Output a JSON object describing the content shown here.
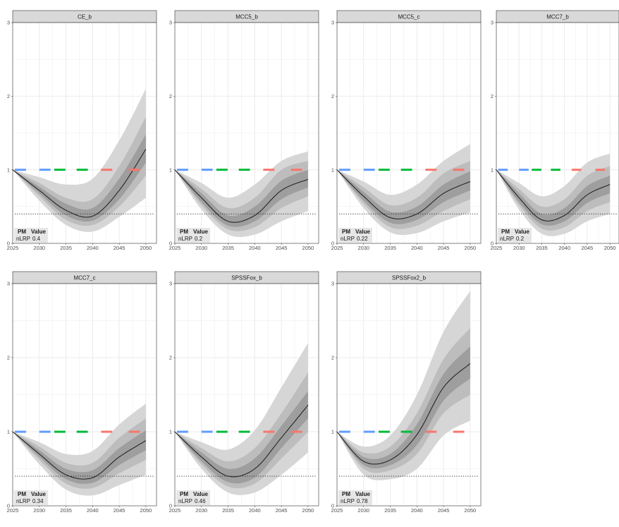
{
  "colors": {
    "panel_bg": "#ffffff",
    "strip_bg": "#d9d9d9",
    "grid": "#ebebeb",
    "band_outer": "#d6d6d6",
    "band_mid": "#bdbdbd",
    "band_inner": "#9e9e9e",
    "median": "#1a1a1a",
    "seg_blue": "#619cff",
    "seg_green": "#00ba38",
    "seg_red": "#f8766d",
    "lrp_line": "#333333",
    "table_bg": "#e6e6e6"
  },
  "table_header": {
    "pm": "PM",
    "value": "Value"
  },
  "chart_data": [
    {
      "type": "line",
      "title": "CE_b",
      "x": [
        2025,
        2030,
        2035,
        2040,
        2045,
        2050
      ],
      "series": [
        {
          "values": [
            1.0,
            0.72,
            0.45,
            0.37,
            0.72,
            1.28
          ]
        },
        {
          "values": [
            1.0,
            0.77,
            0.54,
            0.48,
            0.88,
            1.48
          ]
        },
        {
          "values": [
            1.0,
            0.68,
            0.38,
            0.31,
            0.6,
            1.1
          ]
        },
        {
          "values": [
            1.0,
            0.82,
            0.62,
            0.6,
            1.05,
            1.72
          ]
        },
        {
          "values": [
            1.0,
            0.64,
            0.32,
            0.25,
            0.5,
            0.92
          ]
        },
        {
          "values": [
            1.0,
            0.9,
            0.8,
            0.88,
            1.4,
            2.1
          ]
        },
        {
          "values": [
            1.0,
            0.58,
            0.25,
            0.16,
            0.36,
            0.62
          ]
        }
      ],
      "reference": {
        "target": 1.0,
        "lrp": 0.4
      },
      "xlim": [
        2025,
        2052
      ],
      "ylim": [
        0,
        3
      ],
      "yticks": [
        0,
        1,
        2,
        3
      ],
      "xticks": [
        2025,
        2030,
        2035,
        2040,
        2045,
        2050
      ],
      "pm": {
        "label": "nLRP",
        "value": "0.4"
      }
    },
    {
      "type": "line",
      "title": "MCC5_b",
      "x": [
        2025,
        2030,
        2035,
        2040,
        2045,
        2050
      ],
      "series": [
        {
          "values": [
            1.0,
            0.62,
            0.3,
            0.38,
            0.72,
            0.87
          ]
        },
        {
          "values": [
            1.0,
            0.68,
            0.38,
            0.5,
            0.85,
            1.0
          ]
        },
        {
          "values": [
            1.0,
            0.56,
            0.24,
            0.3,
            0.6,
            0.76
          ]
        },
        {
          "values": [
            1.0,
            0.74,
            0.48,
            0.62,
            1.0,
            1.12
          ]
        },
        {
          "values": [
            1.0,
            0.52,
            0.19,
            0.22,
            0.48,
            0.64
          ]
        },
        {
          "values": [
            1.0,
            0.82,
            0.62,
            0.8,
            1.12,
            1.25
          ]
        },
        {
          "values": [
            1.0,
            0.46,
            0.12,
            0.12,
            0.3,
            0.44
          ]
        }
      ],
      "reference": {
        "target": 1.0,
        "lrp": 0.4
      },
      "xlim": [
        2025,
        2052
      ],
      "ylim": [
        0,
        3
      ],
      "yticks": [
        0,
        1,
        2,
        3
      ],
      "xticks": [
        2025,
        2030,
        2035,
        2040,
        2045,
        2050
      ],
      "pm": {
        "label": "nLRP",
        "value": "0.2"
      }
    },
    {
      "type": "line",
      "title": "MCC5_c",
      "x": [
        2025,
        2030,
        2035,
        2040,
        2045,
        2050
      ],
      "series": [
        {
          "values": [
            1.0,
            0.64,
            0.35,
            0.4,
            0.68,
            0.84
          ]
        },
        {
          "values": [
            1.0,
            0.7,
            0.43,
            0.5,
            0.8,
            0.98
          ]
        },
        {
          "values": [
            1.0,
            0.58,
            0.28,
            0.32,
            0.56,
            0.72
          ]
        },
        {
          "values": [
            1.0,
            0.76,
            0.52,
            0.62,
            0.95,
            1.12
          ]
        },
        {
          "values": [
            1.0,
            0.54,
            0.22,
            0.24,
            0.44,
            0.6
          ]
        },
        {
          "values": [
            1.0,
            0.84,
            0.66,
            0.8,
            1.12,
            1.35
          ]
        },
        {
          "values": [
            1.0,
            0.48,
            0.15,
            0.14,
            0.3,
            0.42
          ]
        }
      ],
      "reference": {
        "target": 1.0,
        "lrp": 0.4
      },
      "xlim": [
        2025,
        2052
      ],
      "ylim": [
        0,
        3
      ],
      "yticks": [
        0,
        1,
        2,
        3
      ],
      "xticks": [
        2025,
        2030,
        2035,
        2040,
        2045,
        2050
      ],
      "pm": {
        "label": "nLRP",
        "value": "0.22"
      }
    },
    {
      "type": "line",
      "title": "MCC7_b",
      "x": [
        2025,
        2030,
        2035,
        2040,
        2045,
        2050
      ],
      "series": [
        {
          "values": [
            1.0,
            0.62,
            0.32,
            0.38,
            0.66,
            0.8
          ]
        },
        {
          "values": [
            1.0,
            0.68,
            0.4,
            0.48,
            0.78,
            0.92
          ]
        },
        {
          "values": [
            1.0,
            0.56,
            0.26,
            0.3,
            0.55,
            0.68
          ]
        },
        {
          "values": [
            1.0,
            0.74,
            0.5,
            0.6,
            0.92,
            1.05
          ]
        },
        {
          "values": [
            1.0,
            0.52,
            0.2,
            0.22,
            0.44,
            0.56
          ]
        },
        {
          "values": [
            1.0,
            0.82,
            0.64,
            0.78,
            1.1,
            1.22
          ]
        },
        {
          "values": [
            1.0,
            0.46,
            0.13,
            0.13,
            0.3,
            0.4
          ]
        }
      ],
      "reference": {
        "target": 1.0,
        "lrp": 0.4
      },
      "xlim": [
        2025,
        2052
      ],
      "ylim": [
        0,
        3
      ],
      "yticks": [
        0,
        1,
        2,
        3
      ],
      "xticks": [
        2025,
        2030,
        2035,
        2040,
        2045,
        2050
      ],
      "pm": {
        "label": "nLRP",
        "value": "0.2"
      }
    },
    {
      "type": "line",
      "title": "MCC7_c",
      "x": [
        2025,
        2030,
        2035,
        2040,
        2045,
        2050
      ],
      "series": [
        {
          "values": [
            1.0,
            0.7,
            0.42,
            0.38,
            0.66,
            0.88
          ]
        },
        {
          "values": [
            1.0,
            0.75,
            0.5,
            0.48,
            0.78,
            1.02
          ]
        },
        {
          "values": [
            1.0,
            0.66,
            0.36,
            0.31,
            0.55,
            0.75
          ]
        },
        {
          "values": [
            1.0,
            0.8,
            0.58,
            0.58,
            0.92,
            1.18
          ]
        },
        {
          "values": [
            1.0,
            0.62,
            0.3,
            0.24,
            0.44,
            0.62
          ]
        },
        {
          "values": [
            1.0,
            0.86,
            0.7,
            0.74,
            1.1,
            1.38
          ]
        },
        {
          "values": [
            1.0,
            0.56,
            0.22,
            0.14,
            0.28,
            0.42
          ]
        }
      ],
      "reference": {
        "target": 1.0,
        "lrp": 0.4
      },
      "xlim": [
        2025,
        2052
      ],
      "ylim": [
        0,
        3
      ],
      "yticks": [
        0,
        1,
        2,
        3
      ],
      "xticks": [
        2025,
        2030,
        2035,
        2040,
        2045,
        2050
      ],
      "pm": {
        "label": "nLRP",
        "value": "0.34"
      }
    },
    {
      "type": "line",
      "title": "SPSSFox_b",
      "x": [
        2025,
        2030,
        2035,
        2040,
        2045,
        2050
      ],
      "series": [
        {
          "values": [
            1.0,
            0.66,
            0.4,
            0.5,
            0.92,
            1.36
          ]
        },
        {
          "values": [
            1.0,
            0.72,
            0.5,
            0.64,
            1.08,
            1.55
          ]
        },
        {
          "values": [
            1.0,
            0.6,
            0.32,
            0.38,
            0.78,
            1.18
          ]
        },
        {
          "values": [
            1.0,
            0.78,
            0.6,
            0.78,
            1.25,
            1.8
          ]
        },
        {
          "values": [
            1.0,
            0.56,
            0.26,
            0.3,
            0.64,
            1.0
          ]
        },
        {
          "values": [
            1.0,
            0.86,
            0.76,
            1.02,
            1.6,
            2.2
          ]
        },
        {
          "values": [
            1.0,
            0.5,
            0.18,
            0.18,
            0.42,
            0.72
          ]
        }
      ],
      "reference": {
        "target": 1.0,
        "lrp": 0.4
      },
      "xlim": [
        2025,
        2052
      ],
      "ylim": [
        0,
        3
      ],
      "yticks": [
        0,
        1,
        2,
        3
      ],
      "xticks": [
        2025,
        2030,
        2035,
        2040,
        2045,
        2050
      ],
      "pm": {
        "label": "nLRP",
        "value": "0.46"
      }
    },
    {
      "type": "line",
      "title": "SPSSFox2_b",
      "x": [
        2025,
        2030,
        2035,
        2040,
        2045,
        2050
      ],
      "series": [
        {
          "values": [
            1.0,
            0.6,
            0.62,
            0.96,
            1.6,
            1.92
          ]
        },
        {
          "values": [
            1.0,
            0.66,
            0.7,
            1.1,
            1.78,
            2.15
          ]
        },
        {
          "values": [
            1.0,
            0.55,
            0.55,
            0.82,
            1.42,
            1.72
          ]
        },
        {
          "values": [
            1.0,
            0.72,
            0.8,
            1.25,
            1.98,
            2.4
          ]
        },
        {
          "values": [
            1.0,
            0.5,
            0.48,
            0.7,
            1.25,
            1.5
          ]
        },
        {
          "values": [
            1.0,
            0.8,
            0.95,
            1.5,
            2.35,
            2.9
          ]
        },
        {
          "values": [
            1.0,
            0.42,
            0.36,
            0.5,
            0.95,
            1.15
          ]
        }
      ],
      "reference": {
        "target": 1.0,
        "lrp": 0.4
      },
      "xlim": [
        2025,
        2052
      ],
      "ylim": [
        0,
        3
      ],
      "yticks": [
        0,
        1,
        2,
        3
      ],
      "xticks": [
        2025,
        2030,
        2035,
        2040,
        2045,
        2050
      ],
      "pm": {
        "label": "nLRP",
        "value": "0.78"
      }
    }
  ]
}
